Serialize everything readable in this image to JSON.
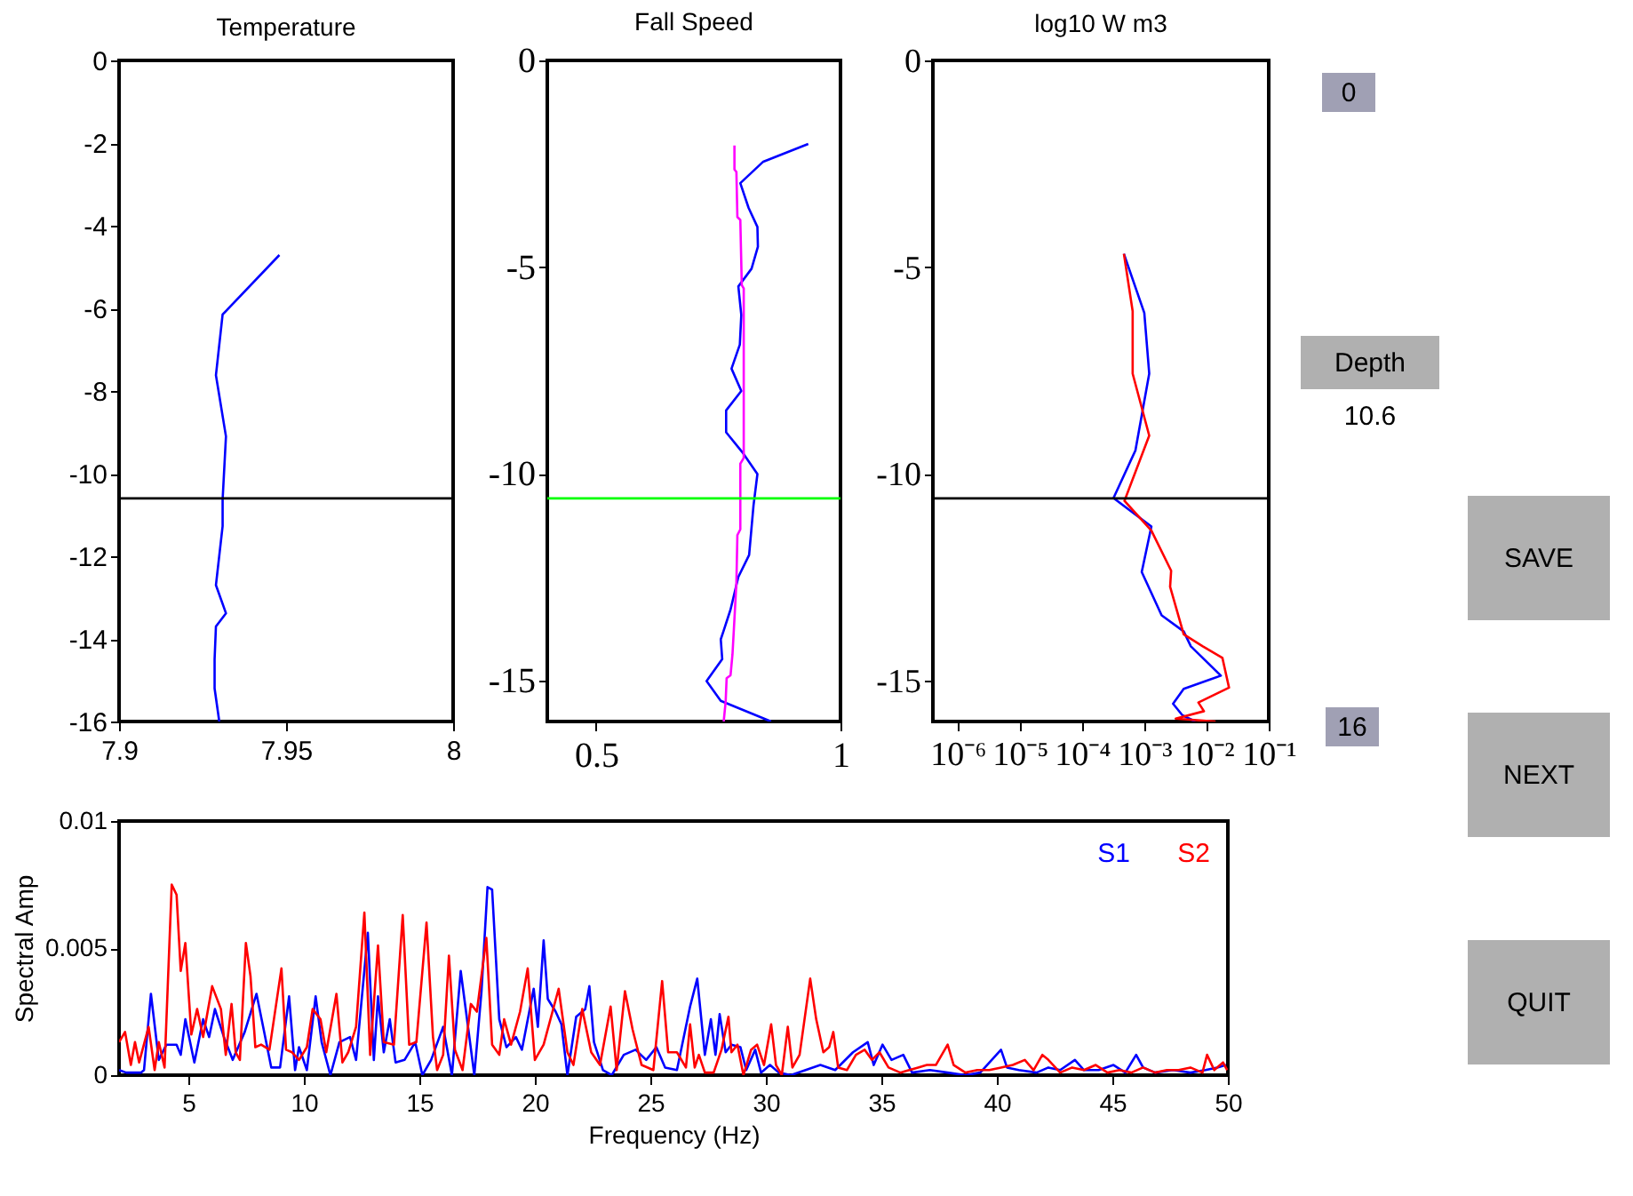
{
  "chart_data": [
    {
      "type": "line",
      "title": "Temperature",
      "xlim": [
        7.9,
        8
      ],
      "xticks": [
        7.9,
        7.95,
        8
      ],
      "ylim": [
        -16,
        0
      ],
      "yticks": [
        0,
        -2,
        -4,
        -6,
        -8,
        -10,
        -12,
        -14,
        -16
      ],
      "series": [
        {
          "color": "#0000ff",
          "x": [
            7.948,
            7.931,
            7.929,
            7.932,
            7.931,
            7.931,
            7.929,
            7.932,
            7.929,
            7.9286,
            7.9286,
            7.93
          ],
          "values": [
            -4.71,
            -6.15,
            -7.62,
            -9.1,
            -10.63,
            -11.27,
            -12.7,
            -13.38,
            -13.7,
            -14.5,
            -15.2,
            -16
          ]
        }
      ],
      "ref_lines": [
        {
          "axis": "y",
          "value": -10.6,
          "color": "#000000"
        }
      ]
    },
    {
      "type": "line",
      "title": "Fall Speed",
      "xlim": [
        0.4,
        1
      ],
      "xticks": [
        0.5,
        1
      ],
      "ylim": [
        -16,
        0
      ],
      "yticks": [
        0,
        -5,
        -10,
        -15
      ],
      "series": [
        {
          "color": "#0000ff",
          "x": [
            0.934,
            0.842,
            0.795,
            0.812,
            0.83,
            0.831,
            0.818,
            0.791,
            0.797,
            0.794,
            0.777,
            0.797,
            0.766,
            0.766,
            0.799,
            0.83,
            0.822,
            0.813,
            0.791,
            0.775,
            0.761,
            0.755,
            0.758,
            0.726,
            0.755,
            0.858
          ],
          "values": [
            -2.02,
            -2.45,
            -2.97,
            -3.57,
            -4.03,
            -4.51,
            -5.04,
            -5.47,
            -6.16,
            -6.88,
            -7.46,
            -8.0,
            -8.47,
            -9.0,
            -9.48,
            -10.01,
            -10.77,
            -11.97,
            -12.5,
            -13.29,
            -13.8,
            -14.01,
            -14.49,
            -15.02,
            -15.5,
            -16
          ]
        },
        {
          "color": "#ff00ff",
          "x": [
            0.783,
            0.783,
            0.787,
            0.789,
            0.795,
            0.798,
            0.802,
            0.802,
            0.795,
            0.795,
            0.789,
            0.787,
            0.783,
            0.779,
            0.775,
            0.767,
            0.765,
            0.761
          ],
          "values": [
            -2.06,
            -2.64,
            -2.7,
            -3.79,
            -3.86,
            -5.44,
            -5.52,
            -9.62,
            -9.76,
            -11.35,
            -11.49,
            -12.64,
            -13.51,
            -14.37,
            -14.88,
            -14.95,
            -15.52,
            -16
          ]
        }
      ],
      "ref_lines": [
        {
          "axis": "y",
          "value": -10.6,
          "color": "#00ff00"
        }
      ]
    },
    {
      "type": "line",
      "title": "log10 W m3",
      "log": "x",
      "xlim": [
        4e-07,
        0.1
      ],
      "xticks": [
        {
          "value": 1e-06,
          "label": "10⁻⁶"
        },
        {
          "value": 1e-05,
          "label": "10⁻⁵"
        },
        {
          "value": 0.0001,
          "label": "10⁻⁴"
        },
        {
          "value": 0.001,
          "label": "10⁻³"
        },
        {
          "value": 0.01,
          "label": "10⁻²"
        },
        {
          "value": 0.1,
          "label": "10⁻¹"
        }
      ],
      "ylim": [
        -16,
        0
      ],
      "yticks": [
        0,
        -5,
        -10,
        -15
      ],
      "series": [
        {
          "color": "#0000ff",
          "x": [
            0.00047,
            0.001,
            0.0012,
            0.00072,
            0.00032,
            0.0013,
            0.00091,
            0.0019,
            0.0043,
            0.0056,
            0.017,
            0.0043,
            0.0029,
            0.0041,
            0.0066
          ],
          "values": [
            -4.68,
            -6.11,
            -7.58,
            -9.44,
            -10.59,
            -11.28,
            -12.38,
            -13.43,
            -13.82,
            -14.18,
            -14.89,
            -15.21,
            -15.57,
            -15.85,
            -16
          ]
        },
        {
          "color": "#ff0000",
          "x": [
            0.00047,
            0.00065,
            0.00065,
            0.0012,
            0.00048,
            0.0013,
            0.0027,
            0.0026,
            0.0043,
            0.0087,
            0.018,
            0.023,
            0.0074,
            0.0091,
            0.0032,
            0.014
          ],
          "values": [
            -4.68,
            -6.07,
            -7.58,
            -9.08,
            -10.66,
            -11.38,
            -12.35,
            -12.74,
            -13.89,
            -14.18,
            -14.46,
            -15.18,
            -15.54,
            -15.75,
            -15.93,
            -16
          ]
        }
      ],
      "ref_lines": [
        {
          "axis": "y",
          "value": -10.6,
          "color": "#000000"
        }
      ]
    },
    {
      "type": "line",
      "xlabel": "Frequency (Hz)",
      "ylabel": "Spectral Amp",
      "xlim": [
        2,
        50
      ],
      "xticks": [
        5,
        10,
        15,
        20,
        25,
        30,
        35,
        40,
        45,
        50
      ],
      "ylim": [
        0,
        0.01
      ],
      "yticks": [
        0,
        0.005,
        0.01
      ],
      "legend": "top right",
      "series": [
        {
          "name": "S1",
          "color": "#0000ff",
          "x": [
            2.0,
            2.31,
            2.95,
            3.08,
            3.38,
            3.72,
            4.05,
            4.49,
            4.67,
            4.87,
            5.26,
            5.64,
            5.9,
            6.15,
            6.54,
            6.92,
            7.44,
            7.95,
            8.26,
            8.59,
            8.97,
            9.36,
            9.62,
            9.79,
            10.13,
            10.51,
            10.77,
            11.15,
            11.54,
            12.0,
            12.26,
            12.77,
            13.03,
            13.21,
            13.46,
            13.72,
            13.97,
            14.36,
            14.82,
            15.13,
            15.51,
            16.03,
            16.41,
            16.79,
            17.05,
            17.38,
            17.69,
            17.95,
            18.15,
            18.46,
            18.77,
            19.18,
            19.44,
            19.95,
            20.13,
            20.38,
            20.56,
            20.9,
            21.15,
            21.41,
            21.79,
            22.18,
            22.36,
            22.56,
            22.95,
            23.33,
            23.85,
            24.36,
            24.82,
            25.26,
            25.64,
            26.15,
            26.72,
            27.03,
            27.36,
            27.62,
            27.82,
            28.0,
            28.26,
            28.51,
            28.9,
            29.15,
            29.54,
            29.79,
            30.18,
            30.56,
            31.08,
            31.72,
            32.36,
            33.0,
            33.77,
            34.41,
            34.67,
            35.05,
            35.44,
            35.95,
            36.33,
            37.1,
            37.87,
            38.64,
            39.28,
            40.18,
            40.44,
            40.95,
            41.72,
            42.23,
            42.74,
            43.38,
            43.77,
            44.41,
            45.05,
            45.56,
            46.03,
            46.33,
            46.85,
            47.62,
            48.38,
            49.03,
            49.54,
            49.92
          ],
          "values": [
            0.0002,
            0.0001,
            0.0001,
            0.0002,
            0.0032,
            0.0006,
            0.0012,
            0.0012,
            0.0008,
            0.0022,
            0.0005,
            0.0022,
            0.0015,
            0.0026,
            0.0015,
            0.0006,
            0.0017,
            0.0032,
            0.0018,
            0.0003,
            0.0003,
            0.0031,
            0.0002,
            0.0011,
            0.0002,
            0.0031,
            0.0013,
            0,
            0.0013,
            0.0015,
            0.0006,
            0.0056,
            0.0006,
            0.0031,
            0.0009,
            0.0022,
            0.0005,
            0.0006,
            0.0013,
            0,
            0.0006,
            0.0019,
            0,
            0.0041,
            0.0023,
            0,
            0.0033,
            0.0074,
            0.0073,
            0.0022,
            0.0011,
            0.0015,
            0.001,
            0.0034,
            0.0019,
            0.0053,
            0.003,
            0.0025,
            0.002,
            0,
            0.0023,
            0.0026,
            0.0035,
            0.0013,
            0.0002,
            0,
            0.0008,
            0.001,
            0.0006,
            0.0011,
            0.0003,
            0.0002,
            0.0027,
            0.0038,
            0.0008,
            0.0022,
            0.0008,
            0.0024,
            0.0009,
            0.0012,
            0.0011,
            0.0002,
            0.001,
            0.0001,
            0.0004,
            0.0001,
            0,
            0.0002,
            0.0004,
            0.0002,
            0.0009,
            0.0013,
            0.0004,
            0.0012,
            0.0006,
            0.0008,
            0.0001,
            0.0002,
            0.0001,
            0,
            0.0001,
            0.001,
            0.0003,
            0.0002,
            0.0001,
            0.0003,
            0.0002,
            0.0006,
            0.0002,
            0.0002,
            0.0004,
            0.0001,
            0.0008,
            0.0003,
            0.0001,
            0.0002,
            0.0001,
            0.0002,
            0.0003,
            0.0004
          ]
        },
        {
          "name": "S2",
          "color": "#ff0000",
          "x": [
            2.0,
            2.26,
            2.51,
            2.69,
            2.87,
            3.28,
            3.54,
            3.72,
            3.97,
            4.28,
            4.49,
            4.67,
            4.87,
            5.13,
            5.38,
            5.64,
            6.03,
            6.41,
            6.62,
            6.87,
            7.05,
            7.23,
            7.49,
            7.69,
            7.9,
            8.15,
            8.51,
            9.03,
            9.23,
            9.49,
            9.79,
            10.13,
            10.38,
            10.72,
            10.97,
            11.41,
            11.67,
            11.92,
            12.26,
            12.62,
            12.87,
            13.21,
            13.46,
            13.9,
            14.28,
            14.56,
            14.87,
            15.31,
            15.59,
            15.77,
            16.03,
            16.28,
            16.54,
            16.87,
            17.23,
            17.49,
            17.9,
            18.15,
            18.46,
            18.67,
            18.97,
            19.36,
            19.69,
            20.0,
            20.38,
            21.03,
            21.41,
            21.67,
            22.05,
            22.44,
            22.82,
            23.28,
            23.54,
            23.9,
            24.23,
            24.62,
            25.13,
            25.51,
            25.77,
            26.15,
            26.54,
            26.72,
            26.92,
            27.1,
            27.36,
            27.74,
            28.08,
            28.38,
            28.51,
            28.77,
            29.03,
            29.36,
            29.62,
            29.92,
            30.23,
            30.44,
            30.69,
            30.95,
            31.15,
            31.46,
            31.92,
            32.18,
            32.49,
            32.74,
            32.92,
            33.13,
            33.51,
            33.9,
            34.28,
            34.59,
            34.92,
            35.31,
            35.82,
            36.21,
            36.59,
            36.97,
            37.36,
            37.87,
            38.13,
            38.64,
            39.15,
            39.67,
            40.18,
            40.69,
            41.21,
            41.59,
            41.97,
            42.23,
            42.74,
            43.26,
            43.77,
            44.28,
            44.79,
            45.31,
            45.82,
            46.33,
            46.85,
            47.36,
            47.87,
            48.38,
            48.9,
            49.1,
            49.41,
            49.79,
            49.97
          ],
          "values": [
            0.0013,
            0.0017,
            0.0004,
            0.0013,
            0.0005,
            0.0019,
            0.0002,
            0.0013,
            0.0003,
            0.0075,
            0.0071,
            0.0041,
            0.0052,
            0.0016,
            0.0026,
            0.0015,
            0.0035,
            0.0026,
            0.0008,
            0.0028,
            0.0009,
            0.0006,
            0.0052,
            0.0039,
            0.0011,
            0.0012,
            0.001,
            0.0042,
            0.001,
            0.0009,
            0.0006,
            0.0011,
            0.0026,
            0.0022,
            0.0009,
            0.0032,
            0.0005,
            0.0009,
            0.0019,
            0.0064,
            0.0008,
            0.0051,
            0.0013,
            0.0012,
            0.0063,
            0.0012,
            0.0013,
            0.006,
            0.0015,
            0.0002,
            0.0008,
            0.0047,
            0.001,
            0.0002,
            0.0028,
            0.0025,
            0.0054,
            0.0012,
            0.0008,
            0.0022,
            0.0012,
            0.0025,
            0.0042,
            0.0006,
            0.0012,
            0.0034,
            0.0009,
            0.0004,
            0.0026,
            0.0009,
            0.0004,
            0.0027,
            0.0002,
            0.0033,
            0.0018,
            0.0004,
            0.0002,
            0.0037,
            0.0009,
            0.0009,
            0.0003,
            0.002,
            0.0003,
            0.0008,
            0.0001,
            0.0001,
            0.001,
            0.0023,
            0.0009,
            0.0012,
            0,
            0.001,
            0.0012,
            0.0004,
            0.002,
            0.0004,
            0,
            0.0019,
            0.0003,
            0.0008,
            0.0038,
            0.0022,
            0.0009,
            0.0011,
            0.0017,
            0.0003,
            0.0002,
            0.0008,
            0.001,
            0.0006,
            0.0009,
            0.0003,
            0.0001,
            0.0002,
            0.0003,
            0.0004,
            0.0004,
            0.0012,
            0.0004,
            0.0001,
            0.0002,
            0.0002,
            0.0003,
            0.0004,
            0.0006,
            0.0002,
            0.0008,
            0.0006,
            0.0001,
            0.0003,
            0.0002,
            0.0004,
            0.0001,
            0.0002,
            0.0001,
            0.0003,
            0.0001,
            0.0002,
            0.0002,
            0.0003,
            0.0001,
            0.0008,
            0.0002,
            0.0005,
            0.0002
          ]
        }
      ]
    },
    {
      "type": "other",
      "annotations": [
        "0",
        "Depth",
        "10.6",
        "16",
        "SAVE",
        "NEXT",
        "QUIT"
      ]
    }
  ]
}
